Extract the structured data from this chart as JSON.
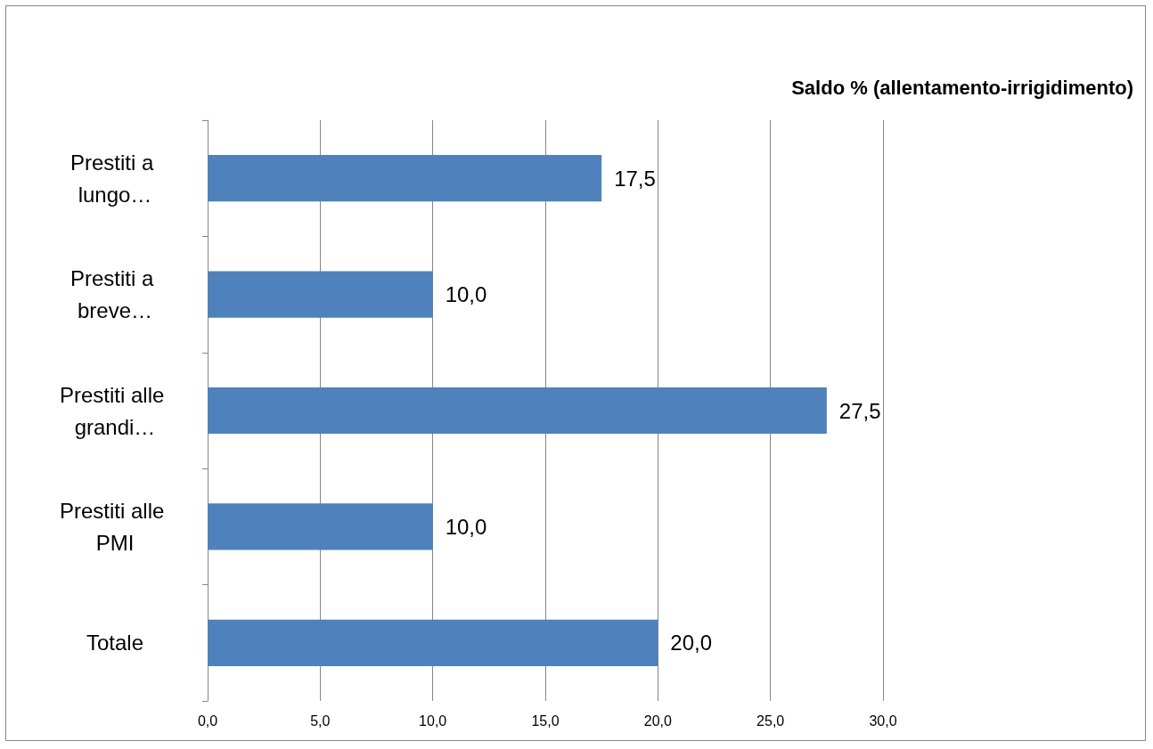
{
  "chart_data": {
    "type": "bar",
    "orientation": "horizontal",
    "title": "Saldo % (allentamento-irrigidimento)",
    "categories": [
      "Prestiti a lungo…",
      "Prestiti a breve…",
      "Prestiti alle grandi…",
      "Prestiti alle PMI",
      "Totale"
    ],
    "values": [
      17.5,
      10.0,
      27.5,
      10.0,
      20.0
    ],
    "value_labels": [
      "17,5",
      "10,0",
      "27,5",
      "10,0",
      "20,0"
    ],
    "color": "#4f81bd",
    "xlim": [
      0,
      30
    ],
    "xticks": [
      {
        "value": 0,
        "label": "0,0"
      },
      {
        "value": 5,
        "label": "5,0"
      },
      {
        "value": 10,
        "label": "10,0"
      },
      {
        "value": 15,
        "label": "15,0"
      },
      {
        "value": 20,
        "label": "20,0"
      },
      {
        "value": 25,
        "label": "25,0"
      },
      {
        "value": 30,
        "label": "30,0"
      }
    ],
    "grid": "x"
  }
}
